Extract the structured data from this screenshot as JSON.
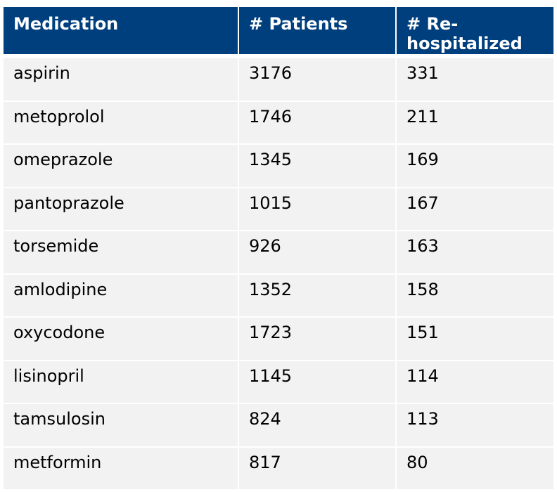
{
  "table": {
    "headers": [
      "Medication",
      "# Patients",
      "# Re-hospitalized"
    ],
    "header_lines": {
      "col3_line1": "# Re-",
      "col3_line2": "hospitalized"
    },
    "rows": [
      [
        "aspirin",
        "3176",
        "331"
      ],
      [
        "metoprolol",
        "1746",
        "211"
      ],
      [
        "omeprazole",
        "1345",
        "169"
      ],
      [
        "pantoprazole",
        "1015",
        "167"
      ],
      [
        "torsemide",
        "926",
        "163"
      ],
      [
        "amlodipine",
        "1352",
        "158"
      ],
      [
        "oxycodone",
        "1723",
        "151"
      ],
      [
        "lisinopril",
        "1145",
        "114"
      ],
      [
        "tamsulosin",
        "824",
        "113"
      ],
      [
        "metformin",
        "817",
        "80"
      ]
    ]
  },
  "colors": {
    "header_bg": "#003f7d",
    "header_text": "#ffffff",
    "cell_bg": "#f2f2f2",
    "cell_text": "#000000"
  }
}
